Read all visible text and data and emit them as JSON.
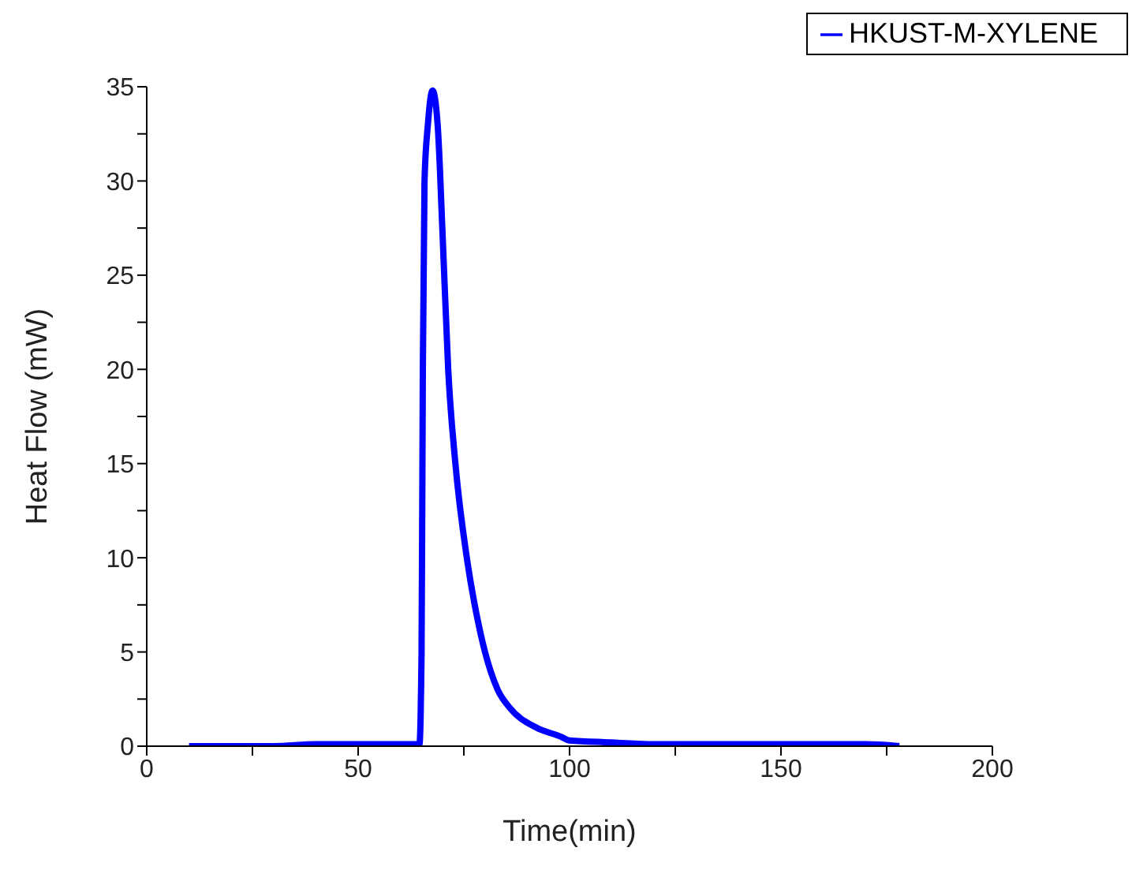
{
  "chart_data": {
    "type": "line",
    "xlabel": "Time(min)",
    "ylabel": "Heat Flow (mW)",
    "xlim": [
      0,
      200
    ],
    "ylim": [
      0,
      35
    ],
    "xticks": [
      0,
      {
        "value": 25,
        "label": null
      },
      50,
      {
        "value": 75,
        "label": null
      },
      100,
      {
        "value": 125,
        "label": null
      },
      150,
      {
        "value": 175,
        "label": null
      },
      200
    ],
    "yticks": [
      0,
      {
        "value": 2.5,
        "label": null
      },
      5,
      {
        "value": 7.5,
        "label": null
      },
      10,
      {
        "value": 12.5,
        "label": null
      },
      15,
      {
        "value": 17.5,
        "label": null
      },
      20,
      {
        "value": 22.5,
        "label": null
      },
      25,
      {
        "value": 27.5,
        "label": null
      },
      30,
      {
        "value": 32.5,
        "label": null
      },
      35
    ],
    "legend": "top right",
    "grid": false,
    "marker": "none",
    "line_style": "solid",
    "series": [
      {
        "name": "HKUST-M-XYLENE",
        "color": "#0000ff",
        "x": [
          10,
          30,
          40,
          55,
          64.5,
          65,
          65.3,
          65.7,
          66.5,
          67.6,
          68.8,
          70,
          71.3,
          73,
          75.7,
          78,
          80,
          83,
          86,
          92,
          98,
          100,
          110,
          120,
          150,
          170,
          178
        ],
        "values": [
          0,
          0,
          0.1,
          0.1,
          0.1,
          5,
          20,
          30,
          33,
          34.8,
          33,
          27,
          20,
          15,
          10,
          7,
          5,
          3,
          2,
          1,
          0.5,
          0.3,
          0.2,
          0.1,
          0.1,
          0.1,
          0
        ]
      }
    ]
  }
}
